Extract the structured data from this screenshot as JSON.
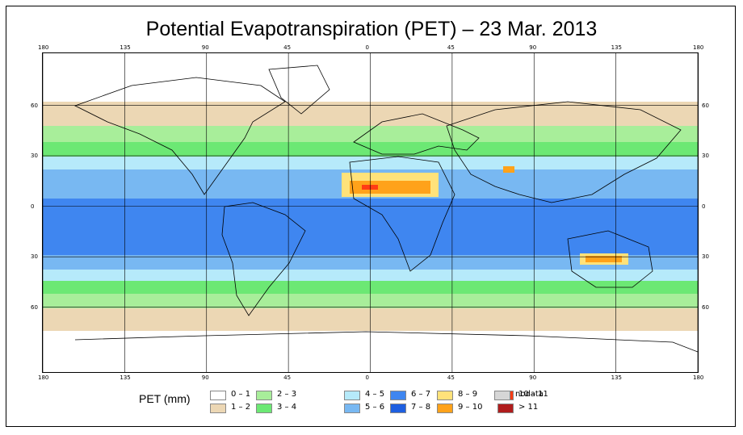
{
  "title": "Potential Evapotranspiration (PET) – 23 Mar. 2013",
  "axes": {
    "top_ticks": [
      "180",
      "135",
      "90",
      "45",
      "0",
      "45",
      "90",
      "135",
      "180"
    ],
    "bottom_ticks": [
      "180",
      "135",
      "90",
      "45",
      "0",
      "45",
      "90",
      "135",
      "180"
    ],
    "left_ticks": [
      "60",
      "30",
      "0",
      "30",
      "60"
    ],
    "right_ticks": [
      "60",
      "30",
      "0",
      "30",
      "60"
    ],
    "longitudes": [
      -180,
      -135,
      -90,
      -45,
      0,
      45,
      90,
      135,
      180
    ],
    "latitudes": [
      60,
      30,
      0,
      -30,
      -60
    ]
  },
  "legend": {
    "title": "PET (mm)",
    "items": [
      {
        "label": "0 – 1",
        "color": "#ffffff"
      },
      {
        "label": "1 – 2",
        "color": "#ecd7b4"
      },
      {
        "label": "2 – 3",
        "color": "#a8ee9a"
      },
      {
        "label": "3 – 4",
        "color": "#6ce874"
      },
      {
        "label": "4 – 5",
        "color": "#b6eafa"
      },
      {
        "label": "5 – 6",
        "color": "#78b8f2"
      },
      {
        "label": "6 – 7",
        "color": "#3f86f0"
      },
      {
        "label": "7 – 8",
        "color": "#1e5fe0"
      },
      {
        "label": "8 – 9",
        "color": "#ffe27a"
      },
      {
        "label": "9 – 10",
        "color": "#ffa21a"
      },
      {
        "label": "10 – 11",
        "color": "#ff3c14"
      },
      {
        "label": "> 11",
        "color": "#b01c1c"
      },
      {
        "label": "nodata",
        "color": "#d6d6d6"
      }
    ]
  }
}
